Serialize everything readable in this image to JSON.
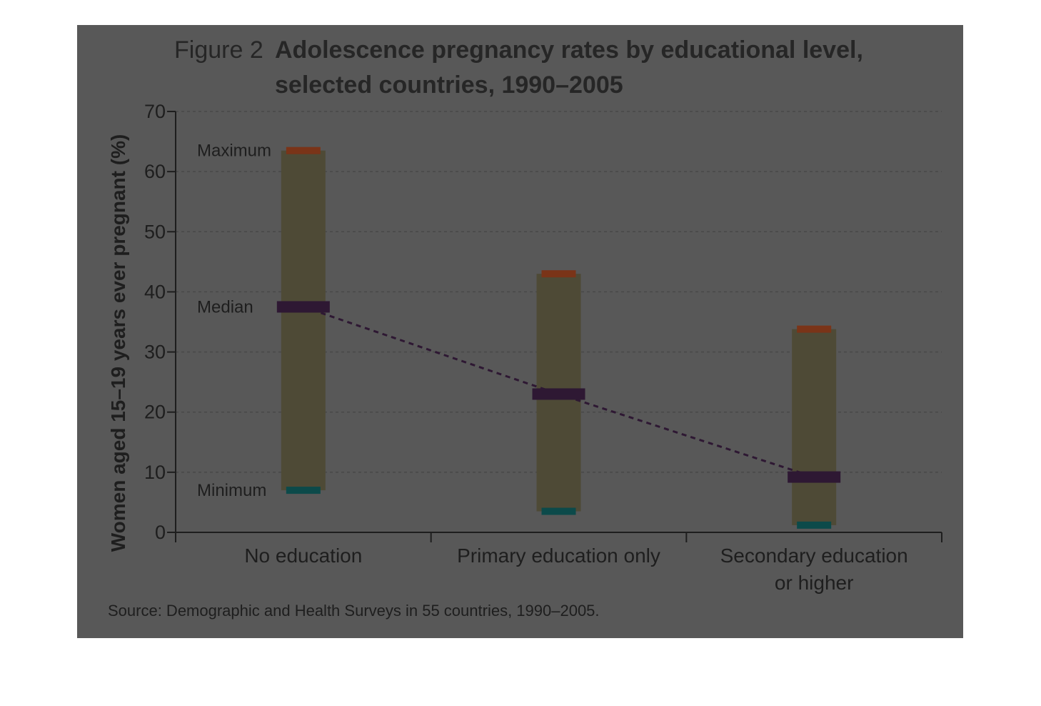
{
  "chart_data": {
    "type": "bar",
    "title_prefix": "Figure 2",
    "title_line1": "Adolescence pregnancy rates by educational level,",
    "title_line2": "selected countries, 1990–2005",
    "ylabel": "Women aged 15–19 years ever pregnant (%)",
    "xlabel": "",
    "ylim": [
      0,
      70
    ],
    "yticks": [
      "0",
      "10",
      "20",
      "30",
      "40",
      "50",
      "60",
      "70"
    ],
    "grid": true,
    "categories": [
      [
        "No education"
      ],
      [
        "Primary education only"
      ],
      [
        "Secondary education",
        "or higher"
      ]
    ],
    "series": [
      {
        "name": "Minimum",
        "values": [
          7,
          3.5,
          1.2
        ]
      },
      {
        "name": "Median",
        "values": [
          37.5,
          23,
          9.2
        ]
      },
      {
        "name": "Maximum",
        "values": [
          63.5,
          43,
          33.8
        ]
      }
    ],
    "annotations": {
      "maximum": "Maximum",
      "median": "Median",
      "minimum": "Minimum"
    },
    "source": "Source: Demographic and Health Surveys in 55 countries, 1990–2005.",
    "colors": {
      "background": "#585858",
      "range_bar": "#4e4a36",
      "maximum": "#7a3418",
      "median": "#2e1833",
      "minimum": "#0c4a4a",
      "trend": "#2e1833",
      "grid": "#484848",
      "axis": "#1e1e1e"
    }
  }
}
